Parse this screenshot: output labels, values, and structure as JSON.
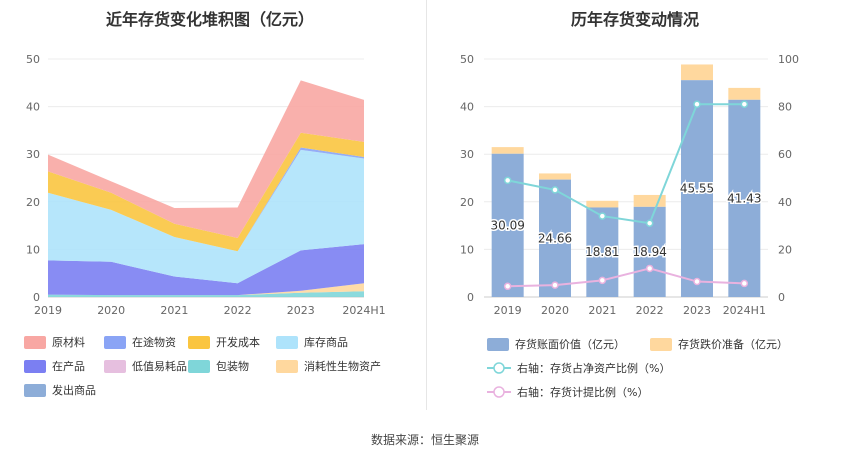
{
  "source": "数据来源：恒生聚源",
  "chart_data": [
    {
      "type": "area",
      "title": "近年存货变化堆积图（亿元）",
      "categories": [
        "2019",
        "2020",
        "2021",
        "2022",
        "2023",
        "2024H1"
      ],
      "ylim": [
        0,
        50
      ],
      "yticks": [
        "0",
        "10",
        "20",
        "30",
        "40",
        "50"
      ],
      "grid": true,
      "legend_position": "bottom",
      "series": [
        {
          "name": "原材料",
          "color": "#f8a7a3",
          "values": [
            3.5,
            2.4,
            3.3,
            6.4,
            11.0,
            8.8
          ]
        },
        {
          "name": "在途物资",
          "color": "#8aa4f5",
          "values": [
            0,
            0,
            0,
            0,
            0.5,
            0.3
          ]
        },
        {
          "name": "开发成本",
          "color": "#fac540",
          "values": [
            4.5,
            3.6,
            2.8,
            2.8,
            3.1,
            3.2
          ]
        },
        {
          "name": "库存商品",
          "color": "#aee3fb",
          "values": [
            14.2,
            10.9,
            8.3,
            6.7,
            21.1,
            18.0
          ]
        },
        {
          "name": "在产品",
          "color": "#7b7ff2",
          "values": [
            7.2,
            7.0,
            3.9,
            2.5,
            8.5,
            8.2
          ]
        },
        {
          "name": "低值易耗品",
          "color": "#e6bfdf",
          "values": [
            0,
            0,
            0,
            0,
            0,
            0
          ]
        },
        {
          "name": "包装物",
          "color": "#7fd6d9",
          "values": [
            0.5,
            0.4,
            0.4,
            0.4,
            0.9,
            1.2
          ]
        },
        {
          "name": "消耗性生物资产",
          "color": "#ffd89e",
          "values": [
            0,
            0,
            0,
            0,
            0.4,
            1.7
          ]
        },
        {
          "name": "发出商品",
          "color": "#8dadd8",
          "values": [
            0,
            0,
            0,
            0,
            0,
            0
          ]
        }
      ]
    },
    {
      "type": "bar",
      "title": "历年存货变动情况",
      "categories": [
        "2019",
        "2020",
        "2021",
        "2022",
        "2023",
        "2024H1"
      ],
      "ylim": [
        0,
        50
      ],
      "y2lim": [
        0,
        100
      ],
      "yticks": [
        "0",
        "10",
        "20",
        "30",
        "40",
        "50"
      ],
      "y2ticks": [
        "0",
        "20",
        "40",
        "60",
        "80",
        "100"
      ],
      "legend_position": "bottom",
      "series": [
        {
          "name": "存货账面价值（亿元）",
          "color": "#8dadd8",
          "values": [
            30.09,
            24.66,
            18.81,
            18.94,
            45.55,
            41.43
          ],
          "labels": [
            "30.09",
            "24.66",
            "18.81",
            "18.94",
            "45.55",
            "41.43"
          ]
        },
        {
          "name": "存货跌价准备（亿元）",
          "color": "#ffd89e",
          "values": [
            1.4,
            1.3,
            1.4,
            2.5,
            3.3,
            2.5
          ]
        },
        {
          "name": "右轴：存货占净资产比例（%）",
          "color": "#7fd6d9",
          "axis": "right",
          "values": [
            49,
            45,
            34,
            31,
            81,
            81
          ]
        },
        {
          "name": "右轴：存货计提比例（%）",
          "color": "#e9b2df",
          "axis": "right",
          "values": [
            4.5,
            5,
            7,
            12,
            6.5,
            5.7
          ]
        }
      ]
    }
  ]
}
